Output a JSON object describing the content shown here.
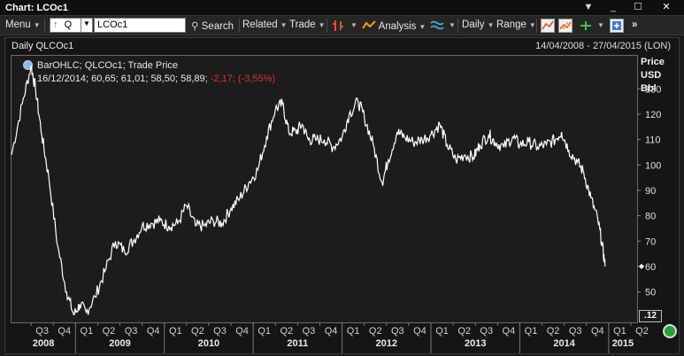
{
  "window": {
    "title": "Chart: LCOc1",
    "controls": [
      "▼",
      "_",
      "☐",
      "✕"
    ]
  },
  "toolbar": {
    "menu": "Menu",
    "instrument_type": "Q",
    "ric_value": "LCOc1",
    "search": "Search",
    "related": "Related",
    "trade": "Trade",
    "analysis": "Analysis",
    "daily": "Daily",
    "range": "Range",
    "more": "»"
  },
  "chart_header": {
    "left": "Daily QLCOc1",
    "right": "14/04/2008 - 27/04/2015 (LON)"
  },
  "legend": {
    "line1": "BarOHLC; QLCOc1; Trade Price",
    "line2_values": "16/12/2014; 60,65; 61,01; 58,50; 58,89;",
    "line2_change": "-2,17; (-3,55%)"
  },
  "y_axis_unit": [
    "Price",
    "USD",
    "Bbl"
  ],
  "last_value_tag": ".12",
  "colors": {
    "background": "#1a1a1a",
    "series": "#ffffff",
    "negative": "#e03030",
    "status_ok": "#28a035"
  },
  "chart_data": {
    "type": "line",
    "series": [
      {
        "values": [
          [
            2008.28,
            104
          ],
          [
            2008.4,
            124
          ],
          [
            2008.5,
            139
          ],
          [
            2008.55,
            130
          ],
          [
            2008.62,
            112
          ],
          [
            2008.7,
            95
          ],
          [
            2008.8,
            68
          ],
          [
            2008.9,
            50
          ],
          [
            2008.98,
            41
          ],
          [
            2009.05,
            45
          ],
          [
            2009.12,
            42
          ],
          [
            2009.22,
            48
          ],
          [
            2009.33,
            58
          ],
          [
            2009.45,
            70
          ],
          [
            2009.55,
            66
          ],
          [
            2009.65,
            70
          ],
          [
            2009.75,
            76
          ],
          [
            2009.85,
            77
          ],
          [
            2009.95,
            78
          ],
          [
            2010.05,
            76
          ],
          [
            2010.15,
            77
          ],
          [
            2010.25,
            84
          ],
          [
            2010.35,
            76
          ],
          [
            2010.45,
            76
          ],
          [
            2010.55,
            78
          ],
          [
            2010.65,
            77
          ],
          [
            2010.75,
            83
          ],
          [
            2010.85,
            87
          ],
          [
            2010.95,
            93
          ],
          [
            2011.05,
            98
          ],
          [
            2011.15,
            111
          ],
          [
            2011.25,
            122
          ],
          [
            2011.33,
            124
          ],
          [
            2011.4,
            113
          ],
          [
            2011.48,
            113
          ],
          [
            2011.55,
            116
          ],
          [
            2011.62,
            110
          ],
          [
            2011.7,
            110
          ],
          [
            2011.8,
            110
          ],
          [
            2011.9,
            107
          ],
          [
            2012.0,
            111
          ],
          [
            2012.08,
            120
          ],
          [
            2012.18,
            125
          ],
          [
            2012.25,
            119
          ],
          [
            2012.35,
            108
          ],
          [
            2012.45,
            93
          ],
          [
            2012.52,
            102
          ],
          [
            2012.62,
            113
          ],
          [
            2012.7,
            111
          ],
          [
            2012.8,
            109
          ],
          [
            2012.9,
            110
          ],
          [
            2013.0,
            112
          ],
          [
            2013.1,
            116
          ],
          [
            2013.18,
            108
          ],
          [
            2013.28,
            102
          ],
          [
            2013.38,
            104
          ],
          [
            2013.48,
            103
          ],
          [
            2013.55,
            108
          ],
          [
            2013.65,
            112
          ],
          [
            2013.72,
            109
          ],
          [
            2013.82,
            107
          ],
          [
            2013.92,
            111
          ],
          [
            2014.0,
            108
          ],
          [
            2014.1,
            109
          ],
          [
            2014.2,
            107
          ],
          [
            2014.3,
            108
          ],
          [
            2014.4,
            110
          ],
          [
            2014.47,
            113
          ],
          [
            2014.55,
            106
          ],
          [
            2014.65,
            101
          ],
          [
            2014.72,
            97
          ],
          [
            2014.8,
            87
          ],
          [
            2014.88,
            78
          ],
          [
            2014.93,
            68
          ],
          [
            2014.96,
            60
          ]
        ]
      }
    ],
    "x_quarter_labels": [
      "Q3",
      "Q4",
      "Q1",
      "Q2",
      "Q3",
      "Q4",
      "Q1",
      "Q2",
      "Q3",
      "Q4",
      "Q1",
      "Q2",
      "Q3",
      "Q4",
      "Q1",
      "Q2",
      "Q3",
      "Q4",
      "Q1",
      "Q2",
      "Q3",
      "Q4",
      "Q1",
      "Q2",
      "Q3",
      "Q4",
      "Q1",
      "Q2"
    ],
    "x_year_labels": [
      "2008",
      "2009",
      "2010",
      "2011",
      "2012",
      "2013",
      "2014",
      "2015"
    ],
    "y_ticks": [
      50,
      60,
      70,
      80,
      90,
      100,
      110,
      120,
      130
    ],
    "ylim": [
      38,
      143
    ],
    "xlim": [
      2008.28,
      2015.32
    ],
    "grid": false
  }
}
